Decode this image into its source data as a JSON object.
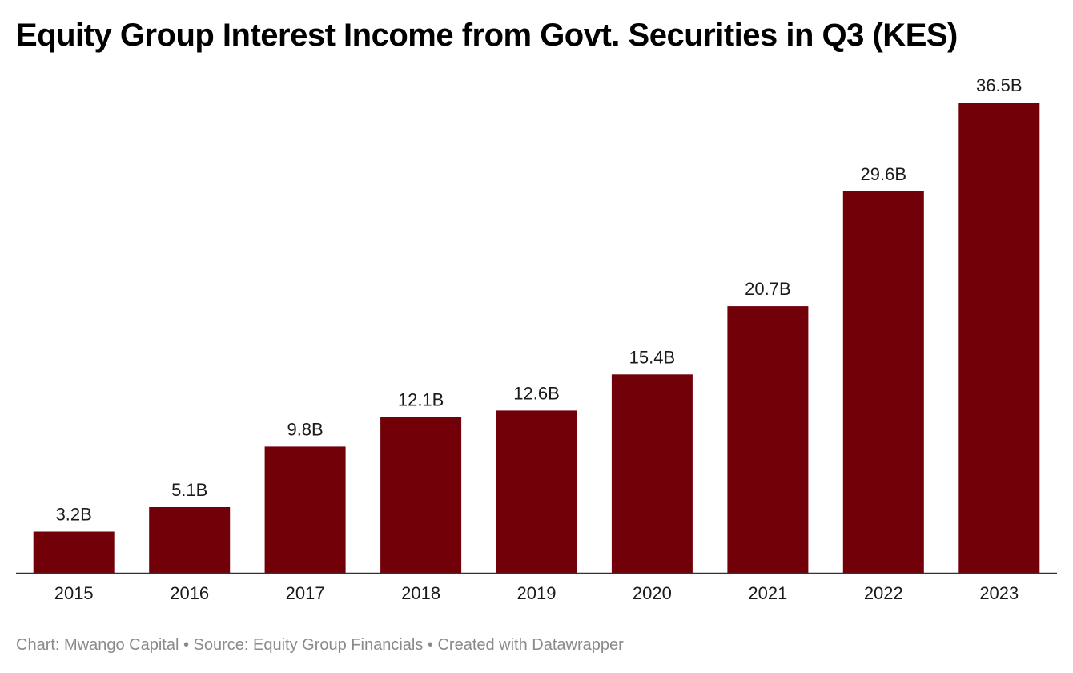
{
  "chart_data": {
    "type": "bar",
    "title": "Equity Group Interest Income from Govt. Securities in Q3 (KES)",
    "categories": [
      "2015",
      "2016",
      "2017",
      "2018",
      "2019",
      "2020",
      "2021",
      "2022",
      "2023"
    ],
    "values": [
      3.2,
      5.1,
      9.8,
      12.1,
      12.6,
      15.4,
      20.7,
      29.6,
      36.5
    ],
    "value_labels": [
      "3.2B",
      "5.1B",
      "9.8B",
      "12.1B",
      "12.6B",
      "15.4B",
      "20.7B",
      "29.6B",
      "36.5B"
    ],
    "unit": "B",
    "ylim": [
      0,
      36.5
    ],
    "xlabel": "",
    "ylabel": "",
    "grid": false,
    "legend": "none",
    "bar_color": "#720009",
    "baseline_color": "#333333"
  },
  "footer": {
    "credit": "Chart: Mwango Capital • Source: Equity Group Financials • Created with Datawrapper"
  }
}
